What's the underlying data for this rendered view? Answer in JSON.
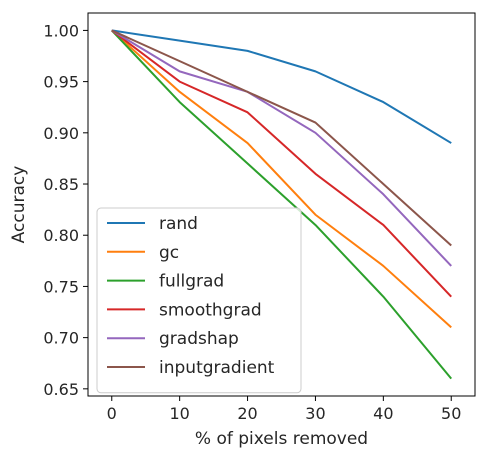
{
  "chart_data": {
    "type": "line",
    "title": "",
    "xlabel": "% of pixels removed",
    "ylabel": "Accuracy",
    "x": [
      0,
      10,
      20,
      30,
      40,
      50
    ],
    "xlim": [
      -3.5,
      53.5
    ],
    "ylim": [
      0.643,
      1.017
    ],
    "xticks": [
      "0",
      "10",
      "20",
      "30",
      "40",
      "50"
    ],
    "yticks": [
      "0.65",
      "0.70",
      "0.75",
      "0.80",
      "0.85",
      "0.90",
      "0.95",
      "1.00"
    ],
    "grid": false,
    "legend_position": "lower-left",
    "series": [
      {
        "name": "rand",
        "color": "#1f77b4",
        "values": [
          1.0,
          0.99,
          0.98,
          0.96,
          0.93,
          0.89
        ]
      },
      {
        "name": "gc",
        "color": "#ff7f0e",
        "values": [
          1.0,
          0.94,
          0.89,
          0.82,
          0.77,
          0.71
        ]
      },
      {
        "name": "fullgrad",
        "color": "#2ca02c",
        "values": [
          1.0,
          0.93,
          0.87,
          0.81,
          0.74,
          0.66
        ]
      },
      {
        "name": "smoothgrad",
        "color": "#d62728",
        "values": [
          1.0,
          0.95,
          0.92,
          0.86,
          0.81,
          0.74
        ]
      },
      {
        "name": "gradshap",
        "color": "#9467bd",
        "values": [
          1.0,
          0.96,
          0.94,
          0.9,
          0.84,
          0.77
        ]
      },
      {
        "name": "inputgradient",
        "color": "#8c564b",
        "values": [
          1.0,
          0.97,
          0.94,
          0.91,
          0.85,
          0.79
        ]
      }
    ]
  }
}
